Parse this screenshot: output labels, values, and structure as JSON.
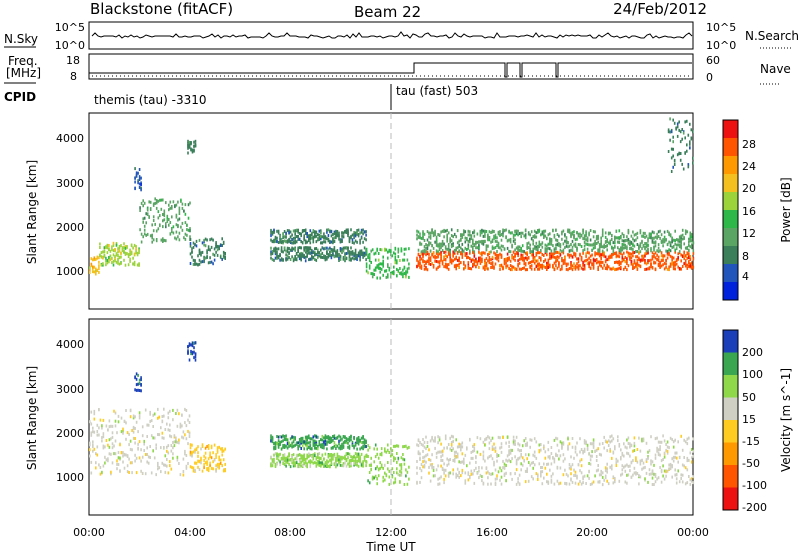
{
  "header": {
    "station": "Blackstone (fitACF)",
    "beam": "Beam 22",
    "date": "24/Feb/2012"
  },
  "nsky_panel": {
    "left_label": "N.Sky",
    "right_label": "N.Search",
    "left_ticks": [
      "10^5",
      "10^0"
    ],
    "right_ticks": [
      "10^5",
      "10^0"
    ],
    "right_legend_line": "dotted"
  },
  "freq_panel": {
    "left_label_1": "Freq.",
    "left_label_2": "[MHz]",
    "right_label": "Nave",
    "left_ticks": [
      "18",
      "8"
    ],
    "right_ticks": [
      "60",
      "0"
    ],
    "right_legend_line": "dotted"
  },
  "cpid_panel": {
    "label": "CPID",
    "segments": [
      {
        "start_hour": 0.0,
        "text": "themis (tau) -3310"
      },
      {
        "start_hour": 12.0,
        "text": "tau (fast) 503"
      }
    ]
  },
  "colors": {
    "power_scale": [
      "#0022dd",
      "#2255bb",
      "#3a7e5a",
      "#5aa564",
      "#2fb84a",
      "#9dd33a",
      "#f4c020",
      "#ff9900",
      "#ff5500",
      "#ee1111"
    ],
    "velocity_scale": [
      "#1a3fb8",
      "#3aa650",
      "#8ed84a",
      "#cfcfc4",
      "#ffcc22",
      "#ff9900",
      "#ff5500",
      "#ee1111"
    ]
  },
  "chart_data": [
    {
      "type": "heatmap",
      "name": "power",
      "xlabel": "",
      "ylabel": "Slant Range [km]",
      "xlim": [
        0,
        24
      ],
      "ylim": [
        180,
        4600
      ],
      "yticks": [
        "1000",
        "2000",
        "3000",
        "4000"
      ],
      "colorbar_label": "Power [dB]",
      "colorbar_ticks": [
        "4",
        "8",
        "12",
        "16",
        "20",
        "24",
        "28"
      ],
      "colorbar_range": [
        0,
        30
      ],
      "bands": [
        {
          "t0": 0.0,
          "t1": 0.4,
          "r0": 1000,
          "r1": 1400,
          "level": 6
        },
        {
          "t0": 0.4,
          "t1": 2.0,
          "r0": 1200,
          "r1": 1700,
          "level": 5
        },
        {
          "t0": 2.0,
          "t1": 4.0,
          "r0": 1700,
          "r1": 2700,
          "level": 3
        },
        {
          "t0": 1.8,
          "t1": 2.1,
          "r0": 2900,
          "r1": 3400,
          "level": 1
        },
        {
          "t0": 4.0,
          "t1": 5.4,
          "r0": 1200,
          "r1": 1800,
          "level": 2
        },
        {
          "t0": 3.9,
          "t1": 4.2,
          "r0": 3700,
          "r1": 4000,
          "level": 2
        },
        {
          "t0": 7.2,
          "t1": 11.0,
          "r0": 1700,
          "r1": 2000,
          "level": 2
        },
        {
          "t0": 7.2,
          "t1": 11.0,
          "r0": 1300,
          "r1": 1600,
          "level": 2
        },
        {
          "t0": 11.0,
          "t1": 12.7,
          "r0": 900,
          "r1": 1600,
          "level": 4
        },
        {
          "t0": 13.0,
          "t1": 24.0,
          "r0": 1100,
          "r1": 1500,
          "level": 8
        },
        {
          "t0": 13.0,
          "t1": 24.0,
          "r0": 1500,
          "r1": 2000,
          "level": 3
        },
        {
          "t0": 23.0,
          "t1": 24.0,
          "r0": 3300,
          "r1": 4500,
          "level": 2
        }
      ]
    },
    {
      "type": "heatmap",
      "name": "velocity",
      "xlabel": "Time UT",
      "ylabel": "Slant Range [km]",
      "xlim": [
        0,
        24
      ],
      "ylim": [
        180,
        4600
      ],
      "yticks": [
        "1000",
        "2000",
        "3000",
        "4000"
      ],
      "xticks": [
        "00:00",
        "04:00",
        "08:00",
        "12:00",
        "16:00",
        "20:00",
        "00:00"
      ],
      "colorbar_label": "Velocity [m s^-1]",
      "colorbar_ticks": [
        "200",
        "100",
        "50",
        "15",
        "-15",
        "-50",
        "-100",
        "-200"
      ],
      "colorbar_range": [
        -250,
        250
      ],
      "bands": [
        {
          "t0": 0.0,
          "t1": 4.0,
          "r0": 1100,
          "r1": 2600,
          "level": 3
        },
        {
          "t0": 1.8,
          "t1": 2.1,
          "r0": 3000,
          "r1": 3400,
          "level": 0
        },
        {
          "t0": 3.9,
          "t1": 4.2,
          "r0": 3700,
          "r1": 4100,
          "level": 0
        },
        {
          "t0": 4.0,
          "t1": 5.4,
          "r0": 1200,
          "r1": 1800,
          "level": 4
        },
        {
          "t0": 7.2,
          "t1": 11.0,
          "r0": 1700,
          "r1": 2000,
          "level": 1
        },
        {
          "t0": 7.2,
          "t1": 11.0,
          "r0": 1300,
          "r1": 1600,
          "level": 2
        },
        {
          "t0": 11.0,
          "t1": 12.7,
          "r0": 900,
          "r1": 1800,
          "level": 2
        },
        {
          "t0": 13.0,
          "t1": 24.0,
          "r0": 900,
          "r1": 2000,
          "level": 3
        }
      ]
    }
  ]
}
